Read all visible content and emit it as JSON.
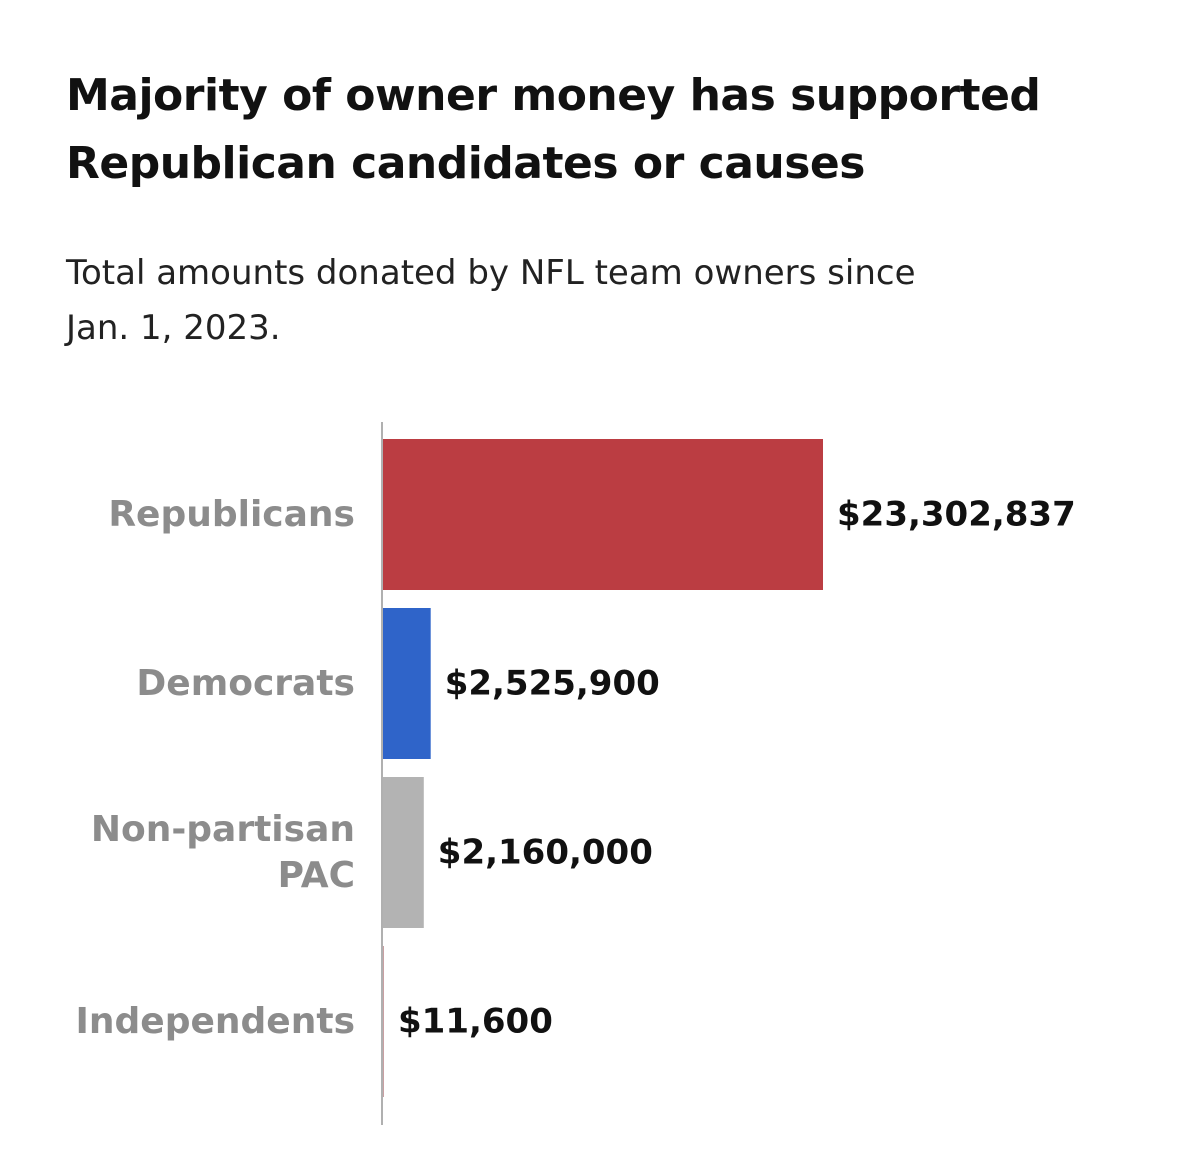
{
  "title_lines": [
    "Majority of owner money has supported",
    "Republican candidates or causes"
  ],
  "subtitle_lines": [
    "Total amounts donated by NFL team owners since",
    "Jan. 1, 2023."
  ],
  "chart_data": {
    "type": "bar",
    "orientation": "horizontal",
    "title": "Majority of owner money has supported Republican candidates or causes",
    "subtitle": "Total amounts donated by NFL team owners since Jan. 1, 2023.",
    "categories": [
      [
        "Republicans"
      ],
      [
        "Democrats"
      ],
      [
        "Non-partisan",
        "PAC"
      ],
      [
        "Independents"
      ]
    ],
    "values": [
      23302837,
      2525900,
      2160000,
      11600
    ],
    "value_labels": [
      "$23,302,837",
      "$2,525,900",
      "$2,160,000",
      "$11,600"
    ],
    "colors": [
      "#bb3d42",
      "#2f64c9",
      "#b3b3b3",
      "#c9a0a3"
    ],
    "axis_color": "#b0b0b0",
    "xlabel": "",
    "ylabel": "",
    "xlim": [
      0,
      23302837
    ],
    "grid": false,
    "legend": false
  }
}
